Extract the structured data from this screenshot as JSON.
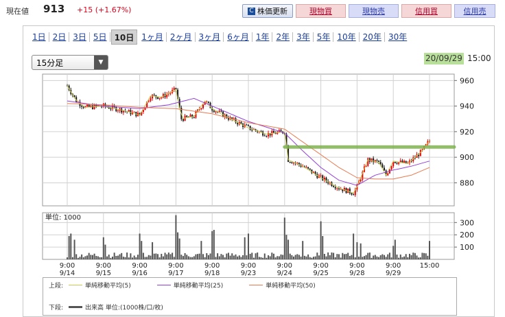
{
  "header": {
    "price_label": "現在値",
    "price_value": "913",
    "price_change": "+15 (+1.67%)",
    "refresh_label": "株価更新",
    "buttons": [
      "現物買",
      "現物売",
      "信用買",
      "信用売"
    ]
  },
  "tabs": [
    "1日",
    "2日",
    "3日",
    "5日",
    "10日",
    "1ヶ月",
    "2ヶ月",
    "3ヶ月",
    "6ヶ月",
    "1年",
    "2年",
    "3年",
    "5年",
    "10年",
    "20年",
    "30年"
  ],
  "active_tab": "10日",
  "interval": "15分足",
  "last_date": "20/09/29",
  "last_time": "15:00",
  "volume_unit": "単位: 1000",
  "legend": {
    "upper_label": "上段:",
    "lower_label": "下段:",
    "ma5": "単純移動平均(5)",
    "ma25": "単純移動平均(25)",
    "ma50": "単純移動平均(50)",
    "volume": "出来高 単位:(1000株/口/枚)"
  },
  "colors": {
    "up": "#e60000",
    "down": "#1a1a1a",
    "ma5": "#c8cc52",
    "ma25": "#9440d8",
    "ma50": "#e87a50",
    "volume": "#555555",
    "resistance": "#7fb24f"
  },
  "chart_data": {
    "type": "candlestick",
    "x_ticks": [
      {
        "time": "9:00",
        "date": "9/14"
      },
      {
        "time": "9:00",
        "date": "9/15"
      },
      {
        "time": "9:00",
        "date": "9/16"
      },
      {
        "time": "9:00",
        "date": "9/17"
      },
      {
        "time": "9:00",
        "date": "9/18"
      },
      {
        "time": "9:00",
        "date": "9/23"
      },
      {
        "time": "9:00",
        "date": "9/24"
      },
      {
        "time": "9:00",
        "date": "9/25"
      },
      {
        "time": "9:00",
        "date": "9/28"
      },
      {
        "time": "9:00",
        "date": "9/29"
      },
      {
        "time": "15:00",
        "date": ""
      }
    ],
    "price_ticks": [
      960,
      940,
      920,
      900,
      880
    ],
    "price_ylim": [
      862,
      965
    ],
    "volume_ticks": [
      300,
      200,
      100
    ],
    "volume_ylim": [
      0,
      380
    ],
    "resistance_level": 908,
    "close_path": [
      {
        "day": 0,
        "close": 956
      },
      {
        "day": 0.25,
        "close": 944
      },
      {
        "day": 0.5,
        "close": 939
      },
      {
        "day": 1,
        "close": 940
      },
      {
        "day": 1.5,
        "close": 937
      },
      {
        "day": 2,
        "close": 933
      },
      {
        "day": 2.3,
        "close": 948
      },
      {
        "day": 2.6,
        "close": 947
      },
      {
        "day": 3,
        "close": 953
      },
      {
        "day": 3.15,
        "close": 930
      },
      {
        "day": 3.5,
        "close": 932
      },
      {
        "day": 3.8,
        "close": 944
      },
      {
        "day": 4,
        "close": 938
      },
      {
        "day": 4.5,
        "close": 930
      },
      {
        "day": 5,
        "close": 923
      },
      {
        "day": 5.5,
        "close": 918
      },
      {
        "day": 6,
        "close": 920
      },
      {
        "day": 6.1,
        "close": 898
      },
      {
        "day": 6.5,
        "close": 893
      },
      {
        "day": 7,
        "close": 884
      },
      {
        "day": 7.5,
        "close": 876
      },
      {
        "day": 7.9,
        "close": 872
      },
      {
        "day": 8,
        "close": 877
      },
      {
        "day": 8.3,
        "close": 898
      },
      {
        "day": 8.6,
        "close": 896
      },
      {
        "day": 8.8,
        "close": 886
      },
      {
        "day": 9,
        "close": 897
      },
      {
        "day": 9.4,
        "close": 895
      },
      {
        "day": 9.8,
        "close": 905
      },
      {
        "day": 10,
        "close": 913
      }
    ],
    "ma25_path": [
      {
        "day": 0,
        "close": 944
      },
      {
        "day": 1,
        "close": 940
      },
      {
        "day": 2,
        "close": 938
      },
      {
        "day": 2.8,
        "close": 941
      },
      {
        "day": 3.5,
        "close": 946
      },
      {
        "day": 4,
        "close": 940
      },
      {
        "day": 5,
        "close": 928
      },
      {
        "day": 6,
        "close": 919
      },
      {
        "day": 6.5,
        "close": 905
      },
      {
        "day": 7,
        "close": 892
      },
      {
        "day": 7.5,
        "close": 882
      },
      {
        "day": 8,
        "close": 878
      },
      {
        "day": 8.5,
        "close": 886
      },
      {
        "day": 9,
        "close": 890
      },
      {
        "day": 9.5,
        "close": 893
      },
      {
        "day": 10,
        "close": 897
      }
    ],
    "ma50_path": [
      {
        "day": 0,
        "close": 942
      },
      {
        "day": 1,
        "close": 941
      },
      {
        "day": 2,
        "close": 939
      },
      {
        "day": 3,
        "close": 938
      },
      {
        "day": 4,
        "close": 934
      },
      {
        "day": 5,
        "close": 927
      },
      {
        "day": 6,
        "close": 922
      },
      {
        "day": 6.5,
        "close": 912
      },
      {
        "day": 7,
        "close": 902
      },
      {
        "day": 7.5,
        "close": 892
      },
      {
        "day": 8,
        "close": 884
      },
      {
        "day": 8.5,
        "close": 883
      },
      {
        "day": 9,
        "close": 883
      },
      {
        "day": 9.5,
        "close": 886
      },
      {
        "day": 10,
        "close": 892
      }
    ],
    "volume_spikes": [
      {
        "day": 0.05,
        "volume": 190
      },
      {
        "day": 0.1,
        "volume": 210
      },
      {
        "day": 0.2,
        "volume": 160
      },
      {
        "day": 1,
        "volume": 180
      },
      {
        "day": 1.05,
        "volume": 120
      },
      {
        "day": 2,
        "volume": 210
      },
      {
        "day": 2.05,
        "volume": 150
      },
      {
        "day": 2.35,
        "volume": 140
      },
      {
        "day": 3,
        "volume": 360
      },
      {
        "day": 3.05,
        "volume": 220
      },
      {
        "day": 3.1,
        "volume": 170
      },
      {
        "day": 3.7,
        "volume": 150
      },
      {
        "day": 4,
        "volume": 230
      },
      {
        "day": 4.05,
        "volume": 240
      },
      {
        "day": 4.9,
        "volume": 180
      },
      {
        "day": 5,
        "volume": 210
      },
      {
        "day": 6,
        "volume": 340
      },
      {
        "day": 6.05,
        "volume": 200
      },
      {
        "day": 6.1,
        "volume": 160
      },
      {
        "day": 6.5,
        "volume": 150
      },
      {
        "day": 7,
        "volume": 310
      },
      {
        "day": 7.05,
        "volume": 190
      },
      {
        "day": 7.9,
        "volume": 210
      },
      {
        "day": 8,
        "volume": 140
      },
      {
        "day": 8.1,
        "volume": 130
      },
      {
        "day": 9,
        "volume": 110
      },
      {
        "day": 9.05,
        "volume": 160
      },
      {
        "day": 10,
        "volume": 150
      }
    ]
  }
}
